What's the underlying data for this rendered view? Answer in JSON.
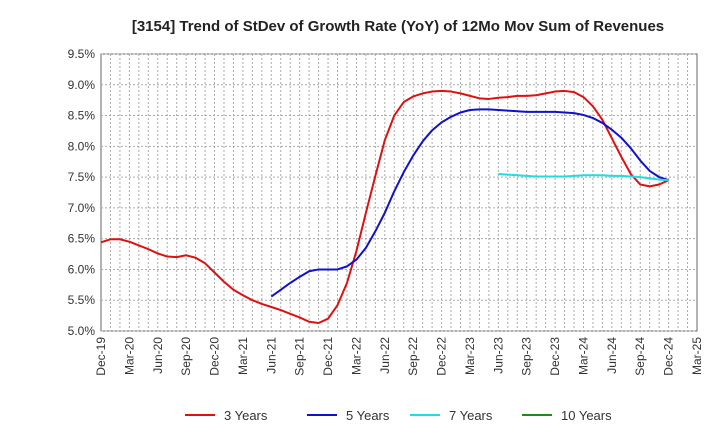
{
  "chart_data": {
    "type": "line",
    "title": "[3154]  Trend of StDev of Growth Rate (YoY) of 12Mo Mov Sum of Revenues",
    "xlabel": "",
    "ylabel": "",
    "ylim": [
      5.0,
      9.5
    ],
    "y_ticks": [
      "5.0%",
      "5.5%",
      "6.0%",
      "6.5%",
      "7.0%",
      "7.5%",
      "8.0%",
      "8.5%",
      "9.0%",
      "9.5%"
    ],
    "x_ticks": [
      "Dec-19",
      "Mar-20",
      "Jun-20",
      "Sep-20",
      "Dec-20",
      "Mar-21",
      "Jun-21",
      "Sep-21",
      "Dec-21",
      "Mar-22",
      "Jun-22",
      "Sep-22",
      "Dec-22",
      "Mar-23",
      "Jun-23",
      "Sep-23",
      "Dec-23",
      "Mar-24",
      "Jun-24",
      "Sep-24",
      "Dec-24",
      "Mar-25"
    ],
    "x_start": "Dec-19",
    "grid": true,
    "legend_position": "bottom",
    "series": [
      {
        "name": "3 Years",
        "color": "#dd1111",
        "start_index": 0,
        "values": [
          6.44,
          6.49,
          6.49,
          6.45,
          6.39,
          6.33,
          6.26,
          6.21,
          6.2,
          6.23,
          6.19,
          6.1,
          5.95,
          5.8,
          5.67,
          5.58,
          5.5,
          5.44,
          5.39,
          5.34,
          5.28,
          5.22,
          5.15,
          5.13,
          5.2,
          5.42,
          5.78,
          6.3,
          6.92,
          7.52,
          8.1,
          8.5,
          8.72,
          8.81,
          8.86,
          8.89,
          8.9,
          8.89,
          8.86,
          8.82,
          8.78,
          8.77,
          8.79,
          8.8,
          8.82,
          8.82,
          8.83,
          8.86,
          8.89,
          8.9,
          8.88,
          8.8,
          8.65,
          8.43,
          8.13,
          7.83,
          7.55,
          7.38,
          7.35,
          7.38,
          7.45
        ]
      },
      {
        "name": "5 Years",
        "color": "#1111cc",
        "start_index": 18,
        "values": [
          5.56,
          5.67,
          5.78,
          5.88,
          5.97,
          6.0,
          6.0,
          6.0,
          6.05,
          6.16,
          6.35,
          6.62,
          6.92,
          7.27,
          7.58,
          7.85,
          8.08,
          8.26,
          8.39,
          8.48,
          8.55,
          8.59,
          8.6,
          8.6,
          8.59,
          8.58,
          8.57,
          8.56,
          8.56,
          8.56,
          8.56,
          8.55,
          8.54,
          8.51,
          8.46,
          8.38,
          8.27,
          8.14,
          7.97,
          7.77,
          7.6,
          7.5,
          7.45
        ]
      },
      {
        "name": "7 Years",
        "color": "#22dddd",
        "start_index": 42,
        "values": [
          7.55,
          7.54,
          7.53,
          7.52,
          7.51,
          7.51,
          7.51,
          7.51,
          7.52,
          7.53,
          7.53,
          7.53,
          7.52,
          7.52,
          7.51,
          7.5,
          7.48,
          7.46,
          7.45
        ]
      },
      {
        "name": "10 Years",
        "color": "#228822",
        "start_index": 0,
        "values": []
      }
    ]
  }
}
